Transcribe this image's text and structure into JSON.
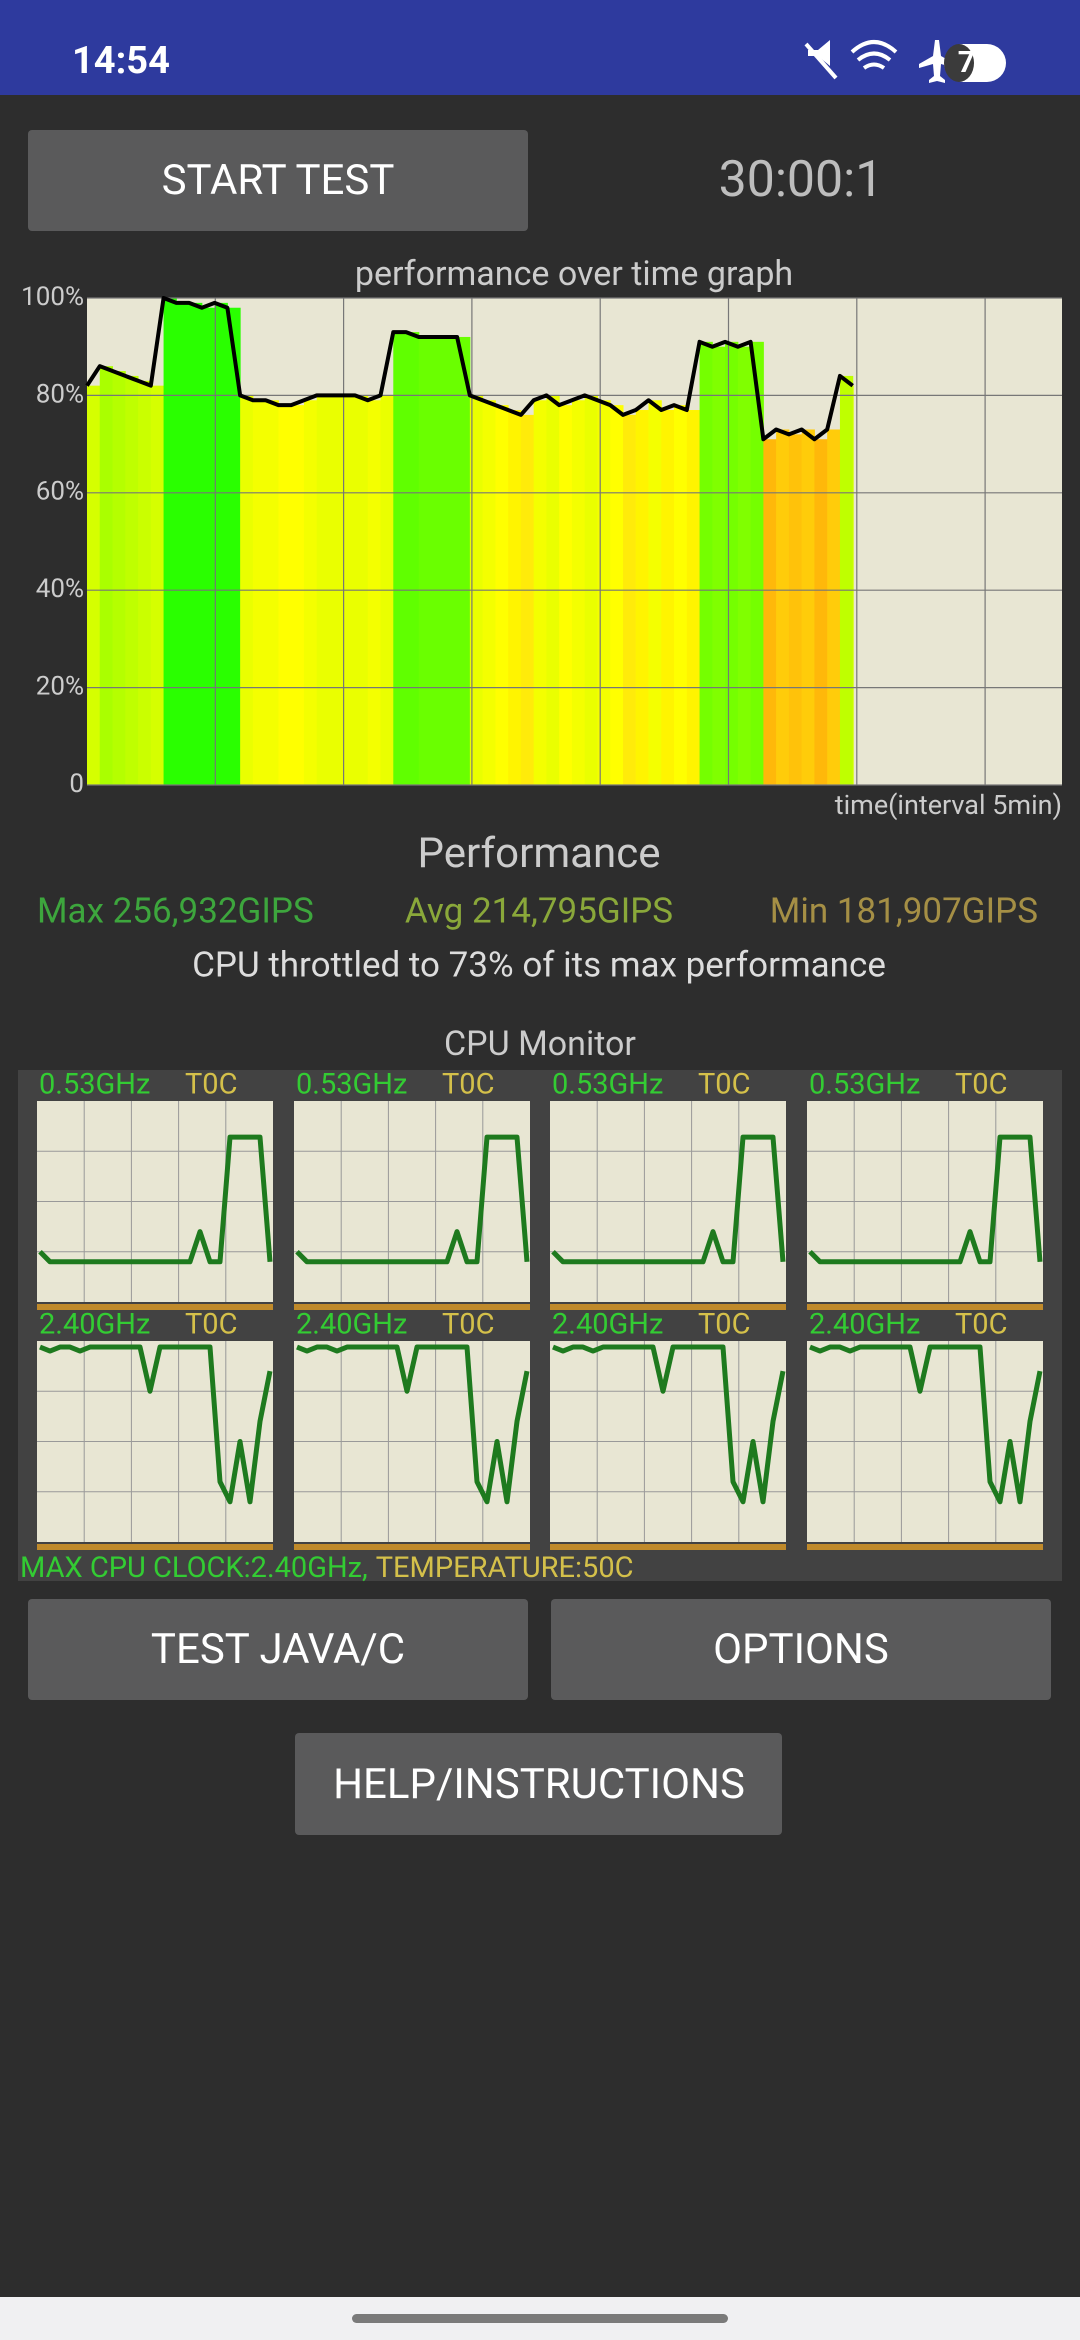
{
  "status_bar": {
    "time": "14:54",
    "battery": "73"
  },
  "controls": {
    "start_button": "START TEST",
    "timer": "30:00:1"
  },
  "chart_data": {
    "type": "line",
    "title": "performance over time graph",
    "x_label": "time(interval 5min)",
    "x": [
      0,
      0.5,
      1,
      1.5,
      2,
      2.5,
      3,
      3.5,
      4,
      4.5,
      5,
      5.5,
      6,
      6.5,
      7,
      7.5,
      8,
      8.5,
      9,
      9.5,
      10,
      10.5,
      11,
      11.5,
      12,
      12.5,
      13,
      13.5,
      14,
      14.5,
      15,
      15.5,
      16,
      16.5,
      17,
      17.5,
      18,
      18.5,
      19,
      19.5,
      20,
      20.5,
      21,
      21.5,
      22,
      22.5,
      23,
      23.5,
      24,
      24.5,
      25,
      25.5,
      26,
      26.5,
      27,
      27.5,
      28,
      28.5,
      29,
      29.5,
      30
    ],
    "series": [
      {
        "color": "#000000",
        "values": [
          82,
          86,
          85,
          84,
          83,
          82,
          100,
          99,
          99,
          98,
          99,
          98,
          80,
          79,
          79,
          78,
          78,
          79,
          80,
          80,
          80,
          80,
          79,
          80,
          93,
          93,
          92,
          92,
          92,
          92,
          80,
          79,
          78,
          77,
          76,
          79,
          80,
          78,
          79,
          80,
          79,
          78,
          76,
          77,
          79,
          77,
          78,
          77,
          91,
          90,
          91,
          90,
          91,
          71,
          73,
          72,
          73,
          71,
          73,
          84,
          82
        ]
      }
    ],
    "xlim": [
      0,
      38.2
    ],
    "ylim": [
      0,
      100
    ],
    "yticks": [
      {
        "value": 0,
        "label": "0"
      },
      {
        "value": 20,
        "label": "20%"
      },
      {
        "value": 40,
        "label": "40%"
      },
      {
        "value": 60,
        "label": "60%"
      },
      {
        "value": 80,
        "label": "80%"
      },
      {
        "value": 100,
        "label": "100%"
      }
    ],
    "grid": true
  },
  "performance": {
    "heading": "Performance",
    "max": "Max 256,932GIPS",
    "avg": "Avg 214,795GIPS",
    "min": "Min 181,907GIPS",
    "summary": "CPU throttled to 73% of its max performance"
  },
  "cpu_monitor": {
    "title": "CPU Monitor",
    "ylim": [
      0,
      1
    ],
    "cores": [
      {
        "freq": "0.53GHz",
        "temp": "T0C",
        "values": [
          0.25,
          0.2,
          0.2,
          0.2,
          0.2,
          0.2,
          0.2,
          0.2,
          0.2,
          0.2,
          0.2,
          0.2,
          0.2,
          0.2,
          0.2,
          0.2,
          0.35,
          0.2,
          0.2,
          0.82,
          0.82,
          0.82,
          0.82,
          0.2
        ]
      },
      {
        "freq": "0.53GHz",
        "temp": "T0C",
        "values": [
          0.25,
          0.2,
          0.2,
          0.2,
          0.2,
          0.2,
          0.2,
          0.2,
          0.2,
          0.2,
          0.2,
          0.2,
          0.2,
          0.2,
          0.2,
          0.2,
          0.35,
          0.2,
          0.2,
          0.82,
          0.82,
          0.82,
          0.82,
          0.2
        ]
      },
      {
        "freq": "0.53GHz",
        "temp": "T0C",
        "values": [
          0.25,
          0.2,
          0.2,
          0.2,
          0.2,
          0.2,
          0.2,
          0.2,
          0.2,
          0.2,
          0.2,
          0.2,
          0.2,
          0.2,
          0.2,
          0.2,
          0.35,
          0.2,
          0.2,
          0.82,
          0.82,
          0.82,
          0.82,
          0.2
        ]
      },
      {
        "freq": "0.53GHz",
        "temp": "T0C",
        "values": [
          0.25,
          0.2,
          0.2,
          0.2,
          0.2,
          0.2,
          0.2,
          0.2,
          0.2,
          0.2,
          0.2,
          0.2,
          0.2,
          0.2,
          0.2,
          0.2,
          0.35,
          0.2,
          0.2,
          0.82,
          0.82,
          0.82,
          0.82,
          0.2
        ]
      },
      {
        "freq": "2.40GHz",
        "temp": "T0C",
        "values": [
          0.97,
          0.95,
          0.97,
          0.97,
          0.95,
          0.97,
          0.97,
          0.97,
          0.97,
          0.97,
          0.97,
          0.75,
          0.97,
          0.97,
          0.97,
          0.97,
          0.97,
          0.97,
          0.3,
          0.2,
          0.5,
          0.2,
          0.6,
          0.85
        ]
      },
      {
        "freq": "2.40GHz",
        "temp": "T0C",
        "values": [
          0.97,
          0.95,
          0.97,
          0.97,
          0.95,
          0.97,
          0.97,
          0.97,
          0.97,
          0.97,
          0.97,
          0.75,
          0.97,
          0.97,
          0.97,
          0.97,
          0.97,
          0.97,
          0.3,
          0.2,
          0.5,
          0.2,
          0.6,
          0.85
        ]
      },
      {
        "freq": "2.40GHz",
        "temp": "T0C",
        "values": [
          0.97,
          0.95,
          0.97,
          0.97,
          0.95,
          0.97,
          0.97,
          0.97,
          0.97,
          0.97,
          0.97,
          0.75,
          0.97,
          0.97,
          0.97,
          0.97,
          0.97,
          0.97,
          0.3,
          0.2,
          0.5,
          0.2,
          0.6,
          0.85
        ]
      },
      {
        "freq": "2.40GHz",
        "temp": "T0C",
        "values": [
          0.97,
          0.95,
          0.97,
          0.97,
          0.95,
          0.97,
          0.97,
          0.97,
          0.97,
          0.97,
          0.97,
          0.75,
          0.97,
          0.97,
          0.97,
          0.97,
          0.97,
          0.97,
          0.3,
          0.2,
          0.5,
          0.2,
          0.6,
          0.85
        ]
      }
    ],
    "max_clock": "MAX CPU CLOCK:2.40GHz,",
    "temperature": "TEMPERATURE:50C"
  },
  "buttons": {
    "test": "TEST JAVA/C",
    "options": "OPTIONS",
    "help": "HELP/INSTRUCTIONS"
  }
}
